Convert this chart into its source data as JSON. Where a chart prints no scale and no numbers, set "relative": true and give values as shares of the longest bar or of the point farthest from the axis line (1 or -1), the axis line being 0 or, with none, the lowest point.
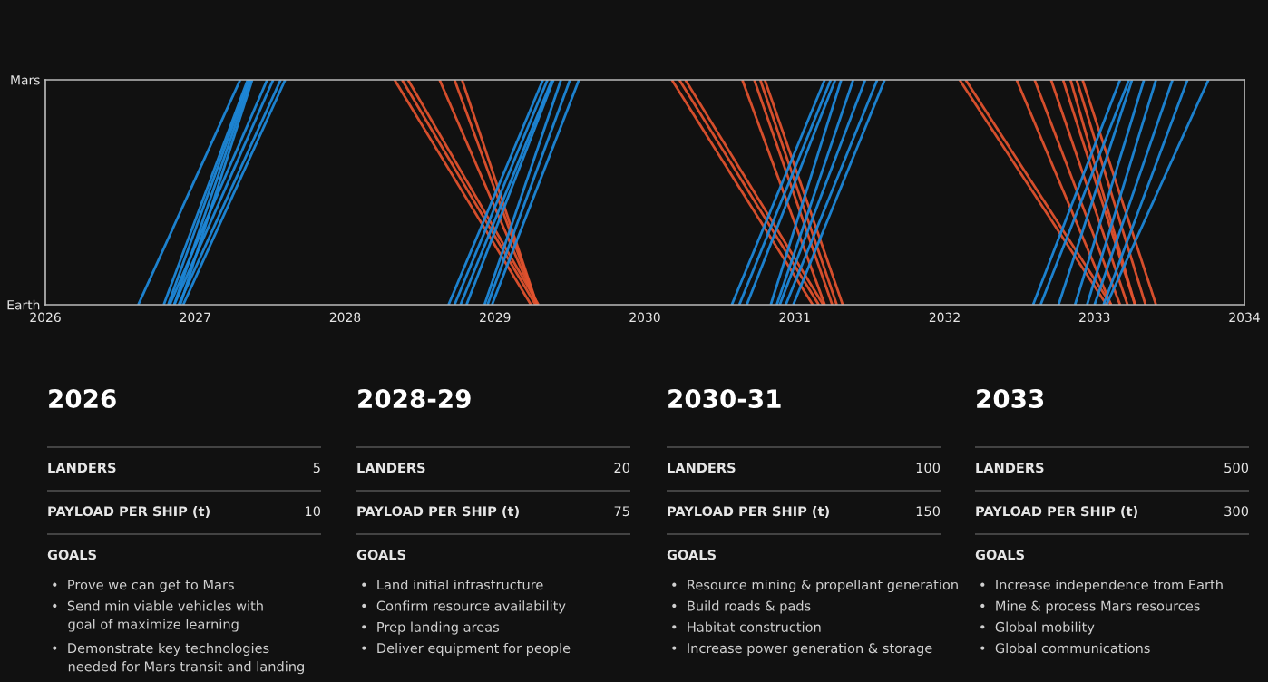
{
  "chart_data": [
    {
      "type": "line",
      "xlim": [
        2026,
        2034
      ],
      "xticks": [
        2026,
        2027,
        2028,
        2029,
        2030,
        2031,
        2032,
        2033,
        2034
      ],
      "relative": true,
      "y_categories": [
        "Mars",
        "Earth"
      ],
      "grid": false,
      "legend": false,
      "marker": "none",
      "line_style": "solid",
      "series": [
        {
          "color": "#1e88d9",
          "x": [
            2026.62,
            2027.3
          ],
          "values": [
            0,
            1
          ]
        },
        {
          "color": "#1e88d9",
          "x": [
            2026.79,
            2027.35
          ],
          "values": [
            0,
            1
          ]
        },
        {
          "color": "#1e88d9",
          "x": [
            2026.82,
            2027.36
          ],
          "values": [
            0,
            1
          ]
        },
        {
          "color": "#1e88d9",
          "x": [
            2026.86,
            2027.37
          ],
          "values": [
            0,
            1
          ]
        },
        {
          "color": "#1e88d9",
          "x": [
            2026.9,
            2027.38
          ],
          "values": [
            0,
            1
          ]
        },
        {
          "color": "#1e88d9",
          "x": [
            2026.83,
            2027.48
          ],
          "values": [
            0,
            1
          ]
        },
        {
          "color": "#1e88d9",
          "x": [
            2026.86,
            2027.52
          ],
          "values": [
            0,
            1
          ]
        },
        {
          "color": "#1e88d9",
          "x": [
            2026.89,
            2027.57
          ],
          "values": [
            0,
            1
          ]
        },
        {
          "color": "#1e88d9",
          "x": [
            2026.92,
            2027.6
          ],
          "values": [
            0,
            1
          ]
        },
        {
          "color": "#e0522e",
          "x": [
            2028.33,
            2029.24
          ],
          "values": [
            1,
            0
          ]
        },
        {
          "color": "#e0522e",
          "x": [
            2028.38,
            2029.27
          ],
          "values": [
            1,
            0
          ]
        },
        {
          "color": "#e0522e",
          "x": [
            2028.42,
            2029.29
          ],
          "values": [
            1,
            0
          ]
        },
        {
          "color": "#e0522e",
          "x": [
            2028.63,
            2029.28
          ],
          "values": [
            1,
            0
          ]
        },
        {
          "color": "#e0522e",
          "x": [
            2028.73,
            2029.28
          ],
          "values": [
            1,
            0
          ]
        },
        {
          "color": "#e0522e",
          "x": [
            2028.78,
            2029.28
          ],
          "values": [
            1,
            0
          ]
        },
        {
          "color": "#1e88d9",
          "x": [
            2028.69,
            2029.32
          ],
          "values": [
            0,
            1
          ]
        },
        {
          "color": "#1e88d9",
          "x": [
            2028.73,
            2029.35
          ],
          "values": [
            0,
            1
          ]
        },
        {
          "color": "#1e88d9",
          "x": [
            2028.77,
            2029.38
          ],
          "values": [
            0,
            1
          ]
        },
        {
          "color": "#1e88d9",
          "x": [
            2028.81,
            2029.39
          ],
          "values": [
            0,
            1
          ]
        },
        {
          "color": "#1e88d9",
          "x": [
            2028.93,
            2029.44
          ],
          "values": [
            0,
            1
          ]
        },
        {
          "color": "#1e88d9",
          "x": [
            2028.95,
            2029.5
          ],
          "values": [
            0,
            1
          ]
        },
        {
          "color": "#1e88d9",
          "x": [
            2028.98,
            2029.56
          ],
          "values": [
            0,
            1
          ]
        },
        {
          "color": "#e0522e",
          "x": [
            2030.18,
            2031.12
          ],
          "values": [
            1,
            0
          ]
        },
        {
          "color": "#e0522e",
          "x": [
            2030.23,
            2031.16
          ],
          "values": [
            1,
            0
          ]
        },
        {
          "color": "#e0522e",
          "x": [
            2030.27,
            2031.19
          ],
          "values": [
            1,
            0
          ]
        },
        {
          "color": "#e0522e",
          "x": [
            2030.65,
            2031.2
          ],
          "values": [
            1,
            0
          ]
        },
        {
          "color": "#e0522e",
          "x": [
            2030.73,
            2031.25
          ],
          "values": [
            1,
            0
          ]
        },
        {
          "color": "#e0522e",
          "x": [
            2030.77,
            2031.28
          ],
          "values": [
            1,
            0
          ]
        },
        {
          "color": "#e0522e",
          "x": [
            2030.8,
            2031.32
          ],
          "values": [
            1,
            0
          ]
        },
        {
          "color": "#1e88d9",
          "x": [
            2030.58,
            2031.2
          ],
          "values": [
            0,
            1
          ]
        },
        {
          "color": "#1e88d9",
          "x": [
            2030.63,
            2031.24
          ],
          "values": [
            0,
            1
          ]
        },
        {
          "color": "#1e88d9",
          "x": [
            2030.68,
            2031.27
          ],
          "values": [
            0,
            1
          ]
        },
        {
          "color": "#1e88d9",
          "x": [
            2030.84,
            2031.31
          ],
          "values": [
            0,
            1
          ]
        },
        {
          "color": "#1e88d9",
          "x": [
            2030.88,
            2031.39
          ],
          "values": [
            0,
            1
          ]
        },
        {
          "color": "#1e88d9",
          "x": [
            2030.9,
            2031.47
          ],
          "values": [
            0,
            1
          ]
        },
        {
          "color": "#1e88d9",
          "x": [
            2030.94,
            2031.55
          ],
          "values": [
            0,
            1
          ]
        },
        {
          "color": "#1e88d9",
          "x": [
            2030.99,
            2031.6
          ],
          "values": [
            0,
            1
          ]
        },
        {
          "color": "#e0522e",
          "x": [
            2032.1,
            2033.08
          ],
          "values": [
            1,
            0
          ]
        },
        {
          "color": "#e0522e",
          "x": [
            2032.14,
            2033.11
          ],
          "values": [
            1,
            0
          ]
        },
        {
          "color": "#e0522e",
          "x": [
            2032.48,
            2033.11
          ],
          "values": [
            1,
            0
          ]
        },
        {
          "color": "#e0522e",
          "x": [
            2032.6,
            2033.17
          ],
          "values": [
            1,
            0
          ]
        },
        {
          "color": "#e0522e",
          "x": [
            2032.71,
            2033.22
          ],
          "values": [
            1,
            0
          ]
        },
        {
          "color": "#e0522e",
          "x": [
            2032.79,
            2033.27
          ],
          "values": [
            1,
            0
          ]
        },
        {
          "color": "#e0522e",
          "x": [
            2032.84,
            2033.27
          ],
          "values": [
            1,
            0
          ]
        },
        {
          "color": "#e0522e",
          "x": [
            2032.88,
            2033.34
          ],
          "values": [
            1,
            0
          ]
        },
        {
          "color": "#e0522e",
          "x": [
            2032.92,
            2033.41
          ],
          "values": [
            1,
            0
          ]
        },
        {
          "color": "#1e88d9",
          "x": [
            2032.59,
            2033.17
          ],
          "values": [
            0,
            1
          ]
        },
        {
          "color": "#1e88d9",
          "x": [
            2032.64,
            2033.23
          ],
          "values": [
            0,
            1
          ]
        },
        {
          "color": "#1e88d9",
          "x": [
            2032.76,
            2033.25
          ],
          "values": [
            0,
            1
          ]
        },
        {
          "color": "#1e88d9",
          "x": [
            2032.87,
            2033.33
          ],
          "values": [
            0,
            1
          ]
        },
        {
          "color": "#1e88d9",
          "x": [
            2032.95,
            2033.41
          ],
          "values": [
            0,
            1
          ]
        },
        {
          "color": "#1e88d9",
          "x": [
            2033.0,
            2033.52
          ],
          "values": [
            0,
            1
          ]
        },
        {
          "color": "#1e88d9",
          "x": [
            2033.06,
            2033.62
          ],
          "values": [
            0,
            1
          ]
        },
        {
          "color": "#1e88d9",
          "x": [
            2033.08,
            2033.76
          ],
          "values": [
            0,
            1
          ]
        }
      ]
    },
    {
      "type": "other",
      "title": "2026",
      "annotations": [
        "LANDERS",
        "5",
        "PAYLOAD PER SHIP (t)",
        "10",
        "GOALS",
        "•  Prove we can get to Mars",
        "•  Send min viable vehicles with\n    goal of maximize learning",
        "•  Demonstrate key technologies\n    needed for Mars transit and landing"
      ]
    },
    {
      "type": "other",
      "title": "2028-29",
      "annotations": [
        "LANDERS",
        "20",
        "PAYLOAD PER SHIP (t)",
        "75",
        "GOALS",
        "•  Land initial infrastructure",
        "•  Confirm resource availability",
        "•  Prep landing areas",
        "•  Deliver equipment for people"
      ]
    },
    {
      "type": "other",
      "title": "2030-31",
      "annotations": [
        "LANDERS",
        "100",
        "PAYLOAD PER SHIP (t)",
        "150",
        "GOALS",
        "•  Resource mining & propellant generation",
        "•  Build roads & pads",
        "•  Habitat construction",
        "•  Increase power generation & storage"
      ]
    },
    {
      "type": "other",
      "title": "2033",
      "annotations": [
        "LANDERS",
        "500",
        "PAYLOAD PER SHIP (t)",
        "300",
        "GOALS",
        "•  Increase independence from Earth",
        "•  Mine & process Mars resources",
        "•  Global mobility",
        "•  Global communications"
      ]
    }
  ]
}
